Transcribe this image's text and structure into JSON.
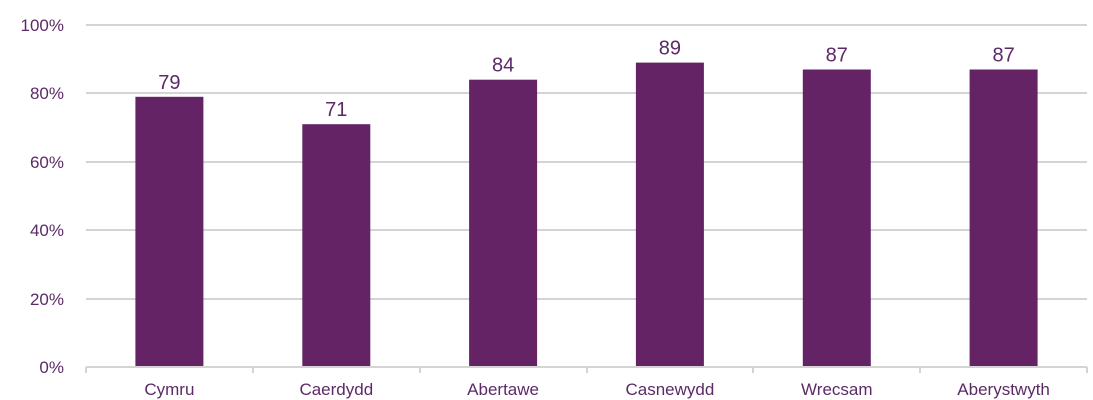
{
  "chart_data": {
    "type": "bar",
    "categories": [
      "Cymru",
      "Caerdydd",
      "Abertawe",
      "Casnewydd",
      "Wrecsam",
      "Aberystwyth"
    ],
    "values": [
      79,
      71,
      84,
      89,
      87,
      87
    ],
    "data_labels": [
      "79",
      "71",
      "84",
      "89",
      "87",
      "87"
    ],
    "ylim": [
      0,
      100
    ],
    "yticks": [
      0,
      20,
      40,
      60,
      80,
      100
    ],
    "ytick_labels": [
      "0%",
      "20%",
      "40%",
      "60%",
      "80%",
      "100%"
    ],
    "title": "",
    "xlabel": "",
    "ylabel": "",
    "grid": true,
    "legend": "none",
    "colors": {
      "bar": "#632365",
      "text": "#5b2a67",
      "grid": "#d4d4d4"
    }
  }
}
